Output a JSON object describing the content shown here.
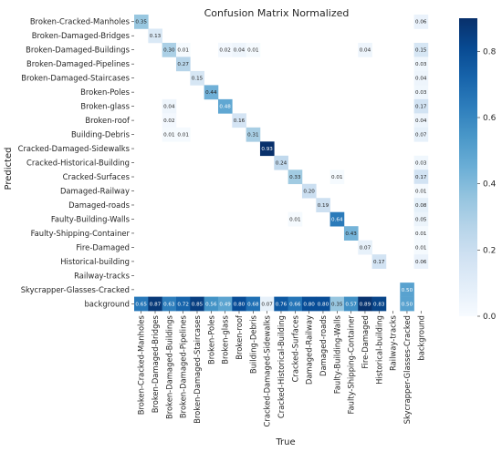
{
  "chart_data": {
    "type": "heatmap",
    "title": "Confusion Matrix Normalized",
    "xlabel": "True",
    "ylabel": "Predicted",
    "labels": [
      "Broken-Cracked-Manholes",
      "Broken-Damaged-Bridges",
      "Broken-Damaged-Buildings",
      "Broken-Damaged-Pipelines",
      "Broken-Damaged-Staircases",
      "Broken-Poles",
      "Broken-glass",
      "Broken-roof",
      "Building-Debris",
      "Cracked-Damaged-Sidewalks",
      "Cracked-Historical-Building",
      "Cracked-Surfaces",
      "Damaged-Railway",
      "Damaged-roads",
      "Faulty-Building-Walls",
      "Faulty-Shipping-Container",
      "Fire-Damaged",
      "Historical-building",
      "Railway-tracks",
      "Skycrapper-Glasses-Cracked",
      "background"
    ],
    "cells": [
      {
        "row": 0,
        "col": 0,
        "value": 0.35
      },
      {
        "row": 0,
        "col": 20,
        "value": 0.06
      },
      {
        "row": 1,
        "col": 1,
        "value": 0.13
      },
      {
        "row": 2,
        "col": 2,
        "value": 0.3
      },
      {
        "row": 2,
        "col": 3,
        "value": 0.01
      },
      {
        "row": 2,
        "col": 6,
        "value": 0.02
      },
      {
        "row": 2,
        "col": 7,
        "value": 0.04
      },
      {
        "row": 2,
        "col": 8,
        "value": 0.01
      },
      {
        "row": 2,
        "col": 16,
        "value": 0.04
      },
      {
        "row": 2,
        "col": 20,
        "value": 0.15
      },
      {
        "row": 3,
        "col": 3,
        "value": 0.27
      },
      {
        "row": 3,
        "col": 20,
        "value": 0.03
      },
      {
        "row": 4,
        "col": 4,
        "value": 0.15
      },
      {
        "row": 4,
        "col": 20,
        "value": 0.04
      },
      {
        "row": 5,
        "col": 5,
        "value": 0.44
      },
      {
        "row": 5,
        "col": 20,
        "value": 0.03
      },
      {
        "row": 6,
        "col": 2,
        "value": 0.04
      },
      {
        "row": 6,
        "col": 6,
        "value": 0.48
      },
      {
        "row": 6,
        "col": 20,
        "value": 0.17
      },
      {
        "row": 7,
        "col": 2,
        "value": 0.02
      },
      {
        "row": 7,
        "col": 7,
        "value": 0.16
      },
      {
        "row": 7,
        "col": 20,
        "value": 0.04
      },
      {
        "row": 8,
        "col": 2,
        "value": 0.01
      },
      {
        "row": 8,
        "col": 3,
        "value": 0.01
      },
      {
        "row": 8,
        "col": 8,
        "value": 0.31
      },
      {
        "row": 8,
        "col": 20,
        "value": 0.07
      },
      {
        "row": 9,
        "col": 9,
        "value": 0.93
      },
      {
        "row": 10,
        "col": 10,
        "value": 0.24
      },
      {
        "row": 10,
        "col": 20,
        "value": 0.03
      },
      {
        "row": 11,
        "col": 11,
        "value": 0.33
      },
      {
        "row": 11,
        "col": 14,
        "value": 0.01
      },
      {
        "row": 11,
        "col": 20,
        "value": 0.17
      },
      {
        "row": 12,
        "col": 12,
        "value": 0.2
      },
      {
        "row": 12,
        "col": 20,
        "value": 0.01
      },
      {
        "row": 13,
        "col": 13,
        "value": 0.19
      },
      {
        "row": 13,
        "col": 20,
        "value": 0.08
      },
      {
        "row": 14,
        "col": 11,
        "value": 0.01
      },
      {
        "row": 14,
        "col": 14,
        "value": 0.64
      },
      {
        "row": 14,
        "col": 20,
        "value": 0.05
      },
      {
        "row": 15,
        "col": 15,
        "value": 0.43
      },
      {
        "row": 15,
        "col": 20,
        "value": 0.01
      },
      {
        "row": 16,
        "col": 16,
        "value": 0.07
      },
      {
        "row": 16,
        "col": 20,
        "value": 0.01
      },
      {
        "row": 17,
        "col": 17,
        "value": 0.17
      },
      {
        "row": 17,
        "col": 20,
        "value": 0.06
      },
      {
        "row": 19,
        "col": 19,
        "value": 0.5
      },
      {
        "row": 20,
        "col": 0,
        "value": 0.65
      },
      {
        "row": 20,
        "col": 1,
        "value": 0.87
      },
      {
        "row": 20,
        "col": 2,
        "value": 0.63
      },
      {
        "row": 20,
        "col": 3,
        "value": 0.72
      },
      {
        "row": 20,
        "col": 4,
        "value": 0.85
      },
      {
        "row": 20,
        "col": 5,
        "value": 0.56
      },
      {
        "row": 20,
        "col": 6,
        "value": 0.49
      },
      {
        "row": 20,
        "col": 7,
        "value": 0.8
      },
      {
        "row": 20,
        "col": 8,
        "value": 0.68
      },
      {
        "row": 20,
        "col": 9,
        "value": 0.07
      },
      {
        "row": 20,
        "col": 10,
        "value": 0.76
      },
      {
        "row": 20,
        "col": 11,
        "value": 0.66
      },
      {
        "row": 20,
        "col": 12,
        "value": 0.8
      },
      {
        "row": 20,
        "col": 13,
        "value": 0.8
      },
      {
        "row": 20,
        "col": 14,
        "value": 0.35
      },
      {
        "row": 20,
        "col": 15,
        "value": 0.57
      },
      {
        "row": 20,
        "col": 16,
        "value": 0.89
      },
      {
        "row": 20,
        "col": 17,
        "value": 0.83
      },
      {
        "row": 20,
        "col": 19,
        "value": 0.5
      }
    ],
    "colorbar": {
      "ticks": [
        "0.0",
        "0.2",
        "0.4",
        "0.6",
        "0.8"
      ],
      "range": [
        0,
        0.9
      ]
    },
    "colors": {
      "low": "#f7fbff",
      "high": "#08306b",
      "dark_text": "#262626",
      "light_text": "#ffffff"
    }
  }
}
